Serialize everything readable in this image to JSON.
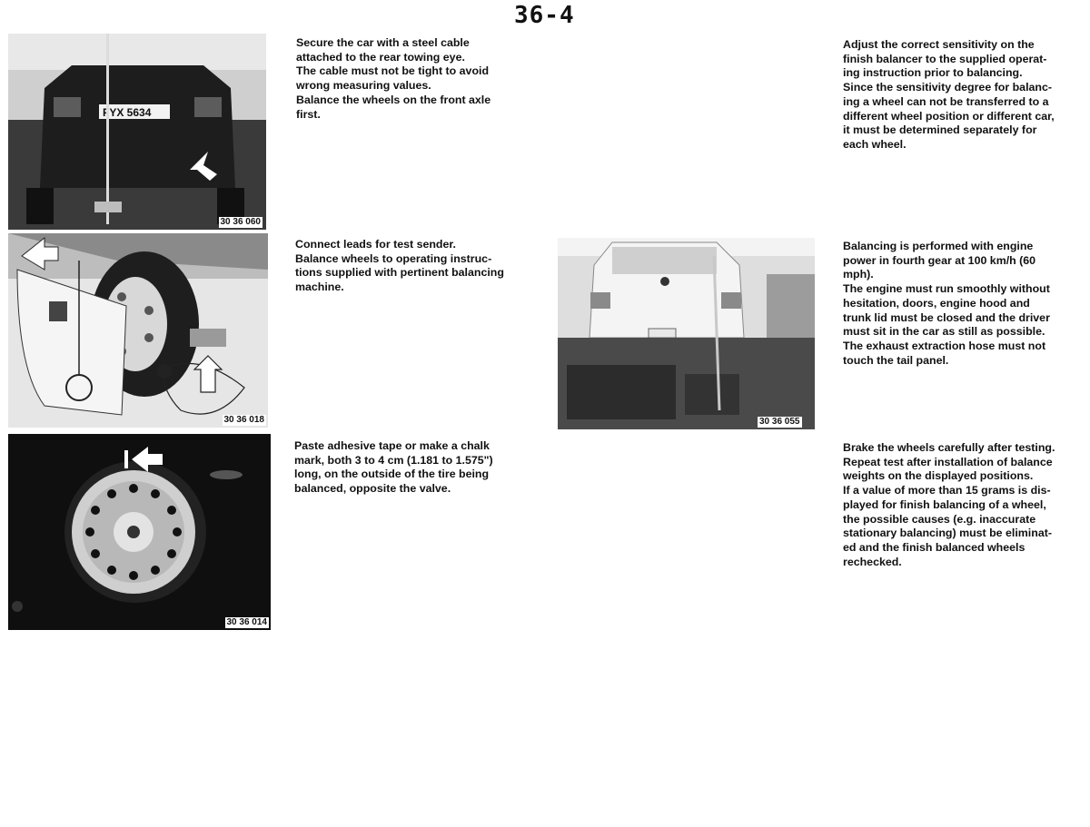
{
  "page_number": "36-4",
  "figures": {
    "rear_car": {
      "id": "30 36 060",
      "plate": "FYX 5634"
    },
    "wheel_leads": {
      "id": "30 36 018"
    },
    "wheel_rim": {
      "id": "30 36 014"
    },
    "car_test": {
      "id": "30 36 055"
    }
  },
  "left_text": {
    "cable": "Secure the car with a steel cable\nattached to the rear towing eye.\nThe cable must not be tight to avoid\nwrong measuring values.\nBalance the wheels on the front axle\nfirst.",
    "leads": "Connect leads for test sender.\nBalance wheels to operating instruc-\ntions supplied with pertinent balancing\nmachine.",
    "tape": "Paste adhesive tape or make a chalk\nmark, both 3 to 4 cm (1.181 to 1.575\")\nlong, on the outside of the tire being\nbalanced, opposite the valve."
  },
  "right_text": {
    "sensitivity": "Adjust the correct sensitivity on the\nfinish balancer to the supplied operat-\ning instruction prior to balancing.\nSince the sensitivity degree for balanc-\ning a wheel can not be transferred to a\ndifferent wheel position or different car,\nit must be determined separately for\neach wheel.",
    "engine": "Balancing is performed with engine\npower in fourth gear at 100 km/h (60\nmph).\nThe engine must run smoothly without\nhesitation, doors, engine hood and\ntrunk lid must be closed and the driver\nmust sit in the car as still as possible.\nThe exhaust extraction hose must not\ntouch the tail panel.",
    "brake": "Brake the wheels carefully after testing.\nRepeat test after installation of balance\nweights on the displayed positions.\nIf a value of more than 15 grams is dis-\nplayed for finish balancing of a wheel,\nthe possible causes (e.g. inaccurate\nstationary balancing) must be eliminat-\ned and the finish balanced wheels\nrechecked."
  }
}
